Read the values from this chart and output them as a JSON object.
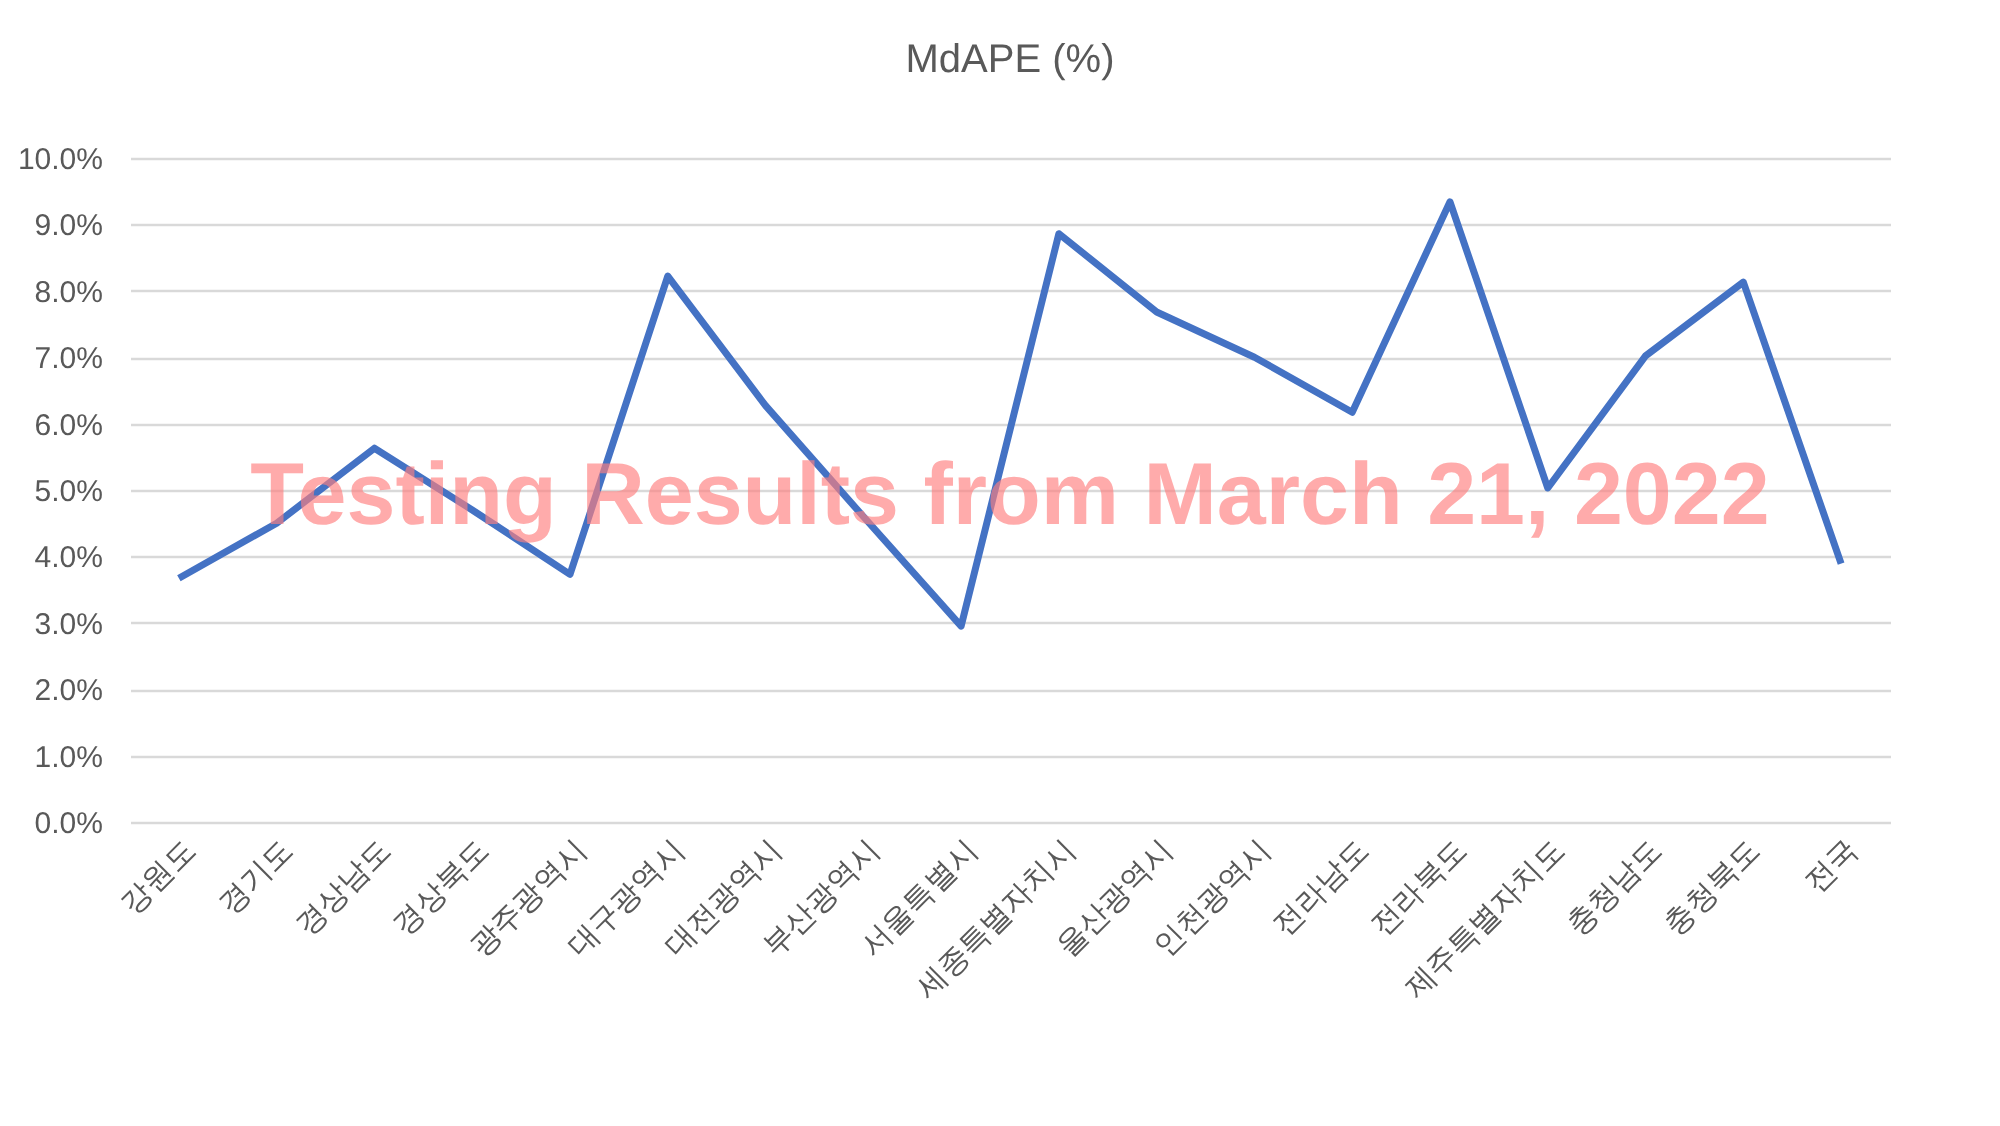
{
  "chart_data": {
    "type": "line",
    "title": "MdAPE (%)",
    "categories": [
      "강원도",
      "경기도",
      "경상남도",
      "경상북도",
      "광주광역시",
      "대구광역시",
      "대전광역시",
      "부산광역시",
      "서울특별시",
      "세종특별자치시",
      "울산광역시",
      "인천광역시",
      "전라남도",
      "전라북도",
      "제주특별자치도",
      "충청남도",
      "충청북도",
      "전국"
    ],
    "series": [
      {
        "color": "#4472c4",
        "values": [
          3.67,
          4.5,
          5.63,
          4.7,
          3.73,
          8.22,
          6.27,
          4.6,
          2.95,
          8.86,
          7.68,
          7.0,
          6.17,
          9.34,
          5.03,
          7.02,
          8.13,
          3.89
        ]
      }
    ],
    "ylim": [
      0,
      10
    ],
    "yticks": [
      {
        "value": 0,
        "label": "0.0%"
      },
      {
        "value": 1,
        "label": "1.0%"
      },
      {
        "value": 2,
        "label": "2.0%"
      },
      {
        "value": 3,
        "label": "3.0%"
      },
      {
        "value": 4,
        "label": "4.0%"
      },
      {
        "value": 5,
        "label": "5.0%"
      },
      {
        "value": 6,
        "label": "6.0%"
      },
      {
        "value": 7,
        "label": "7.0%"
      },
      {
        "value": 8,
        "label": "8.0%"
      },
      {
        "value": 9,
        "label": "9.0%"
      },
      {
        "value": 10,
        "label": "10.0%"
      }
    ],
    "grid": "y",
    "marker": "none",
    "line_style": "solid",
    "annotations": [
      "Testing Results from March 21, 2022"
    ]
  }
}
